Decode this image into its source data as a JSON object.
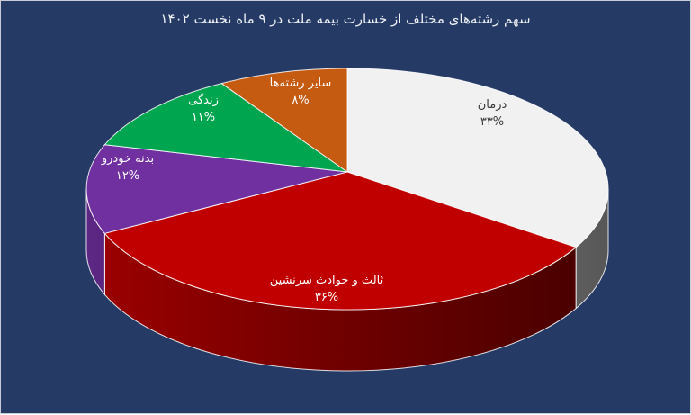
{
  "colors": {
    "background": "#253B66",
    "border": "#C7CCD5",
    "title_text": "#EDF0F5",
    "slice_outline": "rgba(255,255,255,0.85)"
  },
  "chart_data": {
    "type": "pie",
    "style": "3d",
    "title": "سهم رشته‌های مختلف از خسارت بیمه ملت در ۹ ماه نخست ۱۴۰۲",
    "direction": "clockwise",
    "start_angle_deg": 0,
    "legend": "none",
    "data_labels": "inside",
    "series": [
      {
        "label": "درمان",
        "value": 33,
        "percent_fa": "۳۳%",
        "color": "#F1F1F1",
        "label_color": "#3A3A3A"
      },
      {
        "label": "ثالث و حوادث سرنشین",
        "value": 36,
        "percent_fa": "۳۶%",
        "color": "#C00000",
        "label_color": "#FFFFFF"
      },
      {
        "label": "بدنه خودرو",
        "value": 12,
        "percent_fa": "۱۲%",
        "color": "#7030A0",
        "label_color": "#FFFFFF"
      },
      {
        "label": "زندگی",
        "value": 11,
        "percent_fa": "۱۱%",
        "color": "#00A550",
        "label_color": "#FFFFFF"
      },
      {
        "label": "سایر رشته‌ها",
        "value": 8,
        "percent_fa": "۸%",
        "color": "#C55A11",
        "label_color": "#FFFFFF"
      }
    ]
  }
}
